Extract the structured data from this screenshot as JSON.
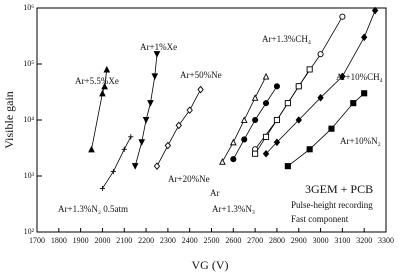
{
  "chart_data": {
    "type": "line",
    "log_y": true,
    "x_label": "VG (V)",
    "y_label": "Visible gain",
    "annotations": [
      "3GEM + PCB",
      "Pulse-height recording",
      "Fast component"
    ],
    "xlim": [
      1700,
      3300
    ],
    "xticks": [
      1700,
      1800,
      1900,
      2000,
      2100,
      2200,
      2300,
      2400,
      2500,
      2600,
      2700,
      2800,
      2900,
      3000,
      3100,
      3200,
      3300
    ],
    "ylim": [
      100,
      1000000
    ],
    "yticks": [
      {
        "value": 100,
        "label": "10²"
      },
      {
        "value": 1000,
        "label": "10³"
      },
      {
        "value": 10000,
        "label": "10⁴"
      },
      {
        "value": 100000,
        "label": "10⁵"
      },
      {
        "value": 1000000,
        "label": "10⁶"
      }
    ],
    "series": [
      {
        "name": "Ar+5.5%Xe",
        "color": "#000000",
        "marker": "triangle-up",
        "x": [
          1950,
          2000,
          2010,
          2020
        ],
        "values": [
          3000,
          30000,
          40000,
          80000
        ]
      },
      {
        "name": "Ar+1%Xe",
        "color": "#000000",
        "marker": "triangle-down",
        "x": [
          2150,
          2180,
          2200,
          2220,
          2240,
          2250
        ],
        "values": [
          1500,
          4000,
          10000,
          20000,
          60000,
          150000
        ]
      },
      {
        "name": "Ar+50%Ne",
        "color": "#000000",
        "marker": "diamond-open",
        "x": [
          2250,
          2300,
          2350,
          2400,
          2450
        ],
        "values": [
          1500,
          3500,
          8000,
          15000,
          35000
        ]
      },
      {
        "name": "Ar+1.3%CH₄",
        "color": "#000000",
        "marker": "circle-open",
        "x": [
          2700,
          2800,
          2900,
          3000,
          3100
        ],
        "values": [
          3000,
          10000,
          40000,
          150000,
          700000
        ]
      },
      {
        "name": "Ar+10%CH₄",
        "color": "#000000",
        "marker": "diamond",
        "x": [
          2750,
          2800,
          2900,
          3000,
          3100,
          3200,
          3250
        ],
        "values": [
          2500,
          4000,
          10000,
          25000,
          60000,
          300000,
          900000
        ]
      },
      {
        "name": "Ar+10%N₂",
        "color": "#000000",
        "marker": "square",
        "x": [
          2850,
          2950,
          3050,
          3150,
          3200
        ],
        "values": [
          1500,
          3000,
          7000,
          20000,
          30000
        ]
      },
      {
        "name": "Ar+20%Ne",
        "color": "#000000",
        "marker": "triangle-open",
        "x": [
          2550,
          2600,
          2650,
          2700,
          2750
        ],
        "values": [
          1800,
          4000,
          10000,
          25000,
          60000
        ]
      },
      {
        "name": "Ar+1.3%N₂ 0.5atm",
        "color": "#000000",
        "marker": "plus",
        "x": [
          2000,
          2050,
          2100,
          2130
        ],
        "values": [
          600,
          1200,
          3000,
          5000
        ]
      },
      {
        "name": "Ar+1.3%N₃",
        "color": "#000000",
        "marker": "square-open",
        "x": [
          2700,
          2750,
          2800,
          2850,
          2900,
          2950
        ],
        "values": [
          2500,
          5000,
          10000,
          20000,
          40000,
          80000
        ]
      },
      {
        "name": "Ar",
        "color": "#000000",
        "marker": "circle",
        "x": [
          2600,
          2650,
          2700,
          2750,
          2800
        ],
        "values": [
          2000,
          4500,
          10000,
          20000,
          40000
        ]
      }
    ]
  }
}
